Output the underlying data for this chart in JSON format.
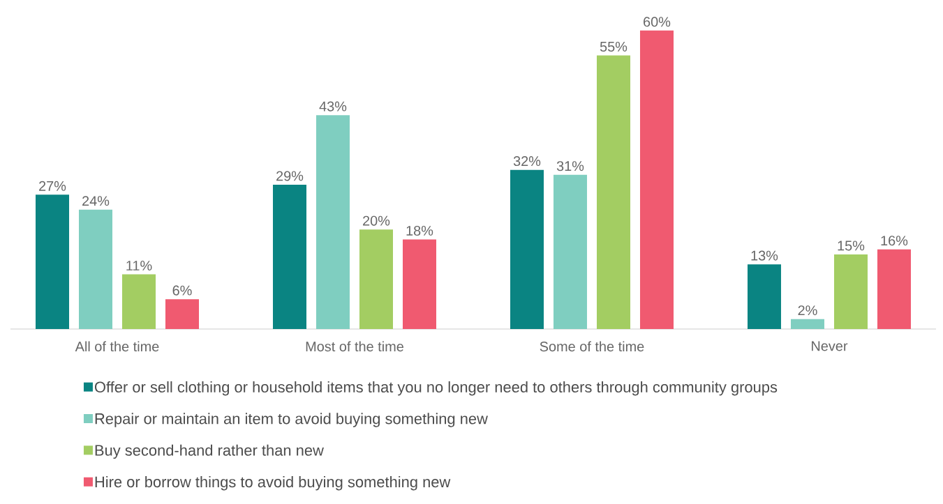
{
  "chart_data": {
    "type": "bar",
    "categories": [
      "All of the time",
      "Most of the time",
      "Some of the time",
      "Never"
    ],
    "series": [
      {
        "name": "Offer or sell clothing or household items that you no longer need to others through community groups",
        "color": "#0a8482",
        "values": [
          27,
          29,
          32,
          13
        ],
        "value_labels": [
          "27%",
          "29%",
          "32%",
          "13%"
        ]
      },
      {
        "name": "Repair or maintain an item to avoid buying something new",
        "color": "#7fcec0",
        "values": [
          24,
          43,
          31,
          2
        ],
        "value_labels": [
          "24%",
          "43%",
          "31%",
          "2%"
        ]
      },
      {
        "name": "Buy second-hand rather than new",
        "color": "#a3cd62",
        "values": [
          11,
          20,
          55,
          15
        ],
        "value_labels": [
          "11%",
          "20%",
          "55%",
          "15%"
        ]
      },
      {
        "name": "Hire or borrow things to avoid buying something new",
        "color": "#f05a70",
        "values": [
          6,
          18,
          60,
          16
        ],
        "value_labels": [
          "6%",
          "18%",
          "60%",
          "16%"
        ]
      }
    ],
    "legend": "bottom"
  }
}
